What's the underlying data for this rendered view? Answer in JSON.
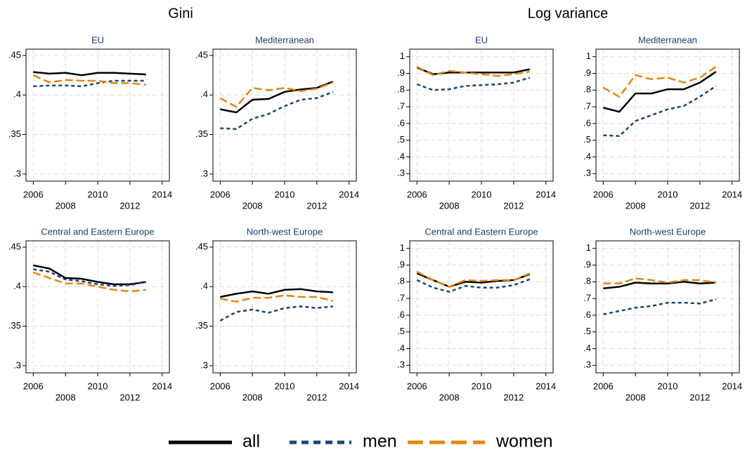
{
  "group_titles": [
    "Gini",
    "Log variance"
  ],
  "chart_data": [
    {
      "type": "line",
      "title": "EU",
      "x": [
        2006,
        2007,
        2008,
        2009,
        2010,
        2011,
        2012,
        2013
      ],
      "series": [
        {
          "name": "all",
          "color": "#000000",
          "linestyle": "solid",
          "values": [
            0.429,
            0.427,
            0.428,
            0.425,
            0.428,
            0.428,
            0.427,
            0.426
          ]
        },
        {
          "name": "men",
          "color": "#1a476f",
          "linestyle": "short",
          "values": [
            0.411,
            0.412,
            0.412,
            0.411,
            0.415,
            0.418,
            0.418,
            0.418
          ]
        },
        {
          "name": "women",
          "color": "#e8850a",
          "linestyle": "long",
          "values": [
            0.425,
            0.416,
            0.419,
            0.418,
            0.418,
            0.415,
            0.415,
            0.413
          ]
        }
      ],
      "xlim": [
        2005.55,
        2014.45
      ],
      "ylim": [
        0.291,
        0.458
      ],
      "xticks": [
        2006,
        2008,
        2010,
        2012,
        2014
      ],
      "yticks": [
        {
          "value": 0.3,
          "label": ".3"
        },
        {
          "value": 0.35,
          "label": ".35"
        },
        {
          "value": 0.4,
          "label": ".4"
        },
        {
          "value": 0.45,
          "label": ".45"
        }
      ],
      "grid": true
    },
    {
      "type": "line",
      "title": "Mediterranean",
      "x": [
        2006,
        2007,
        2008,
        2009,
        2010,
        2011,
        2012,
        2013
      ],
      "series": [
        {
          "name": "all",
          "color": "#000000",
          "linestyle": "solid",
          "values": [
            0.382,
            0.378,
            0.394,
            0.395,
            0.404,
            0.407,
            0.409,
            0.417
          ]
        },
        {
          "name": "men",
          "color": "#1a476f",
          "linestyle": "short",
          "values": [
            0.358,
            0.357,
            0.37,
            0.376,
            0.386,
            0.394,
            0.396,
            0.404
          ]
        },
        {
          "name": "women",
          "color": "#e8850a",
          "linestyle": "long",
          "values": [
            0.396,
            0.385,
            0.409,
            0.406,
            0.409,
            0.405,
            0.408,
            0.416
          ]
        }
      ],
      "xlim": [
        2005.55,
        2014.45
      ],
      "ylim": [
        0.291,
        0.458
      ],
      "xticks": [
        2006,
        2008,
        2010,
        2012,
        2014
      ],
      "yticks": [
        {
          "value": 0.3,
          "label": ".3"
        },
        {
          "value": 0.35,
          "label": ".35"
        },
        {
          "value": 0.4,
          "label": ".4"
        },
        {
          "value": 0.45,
          "label": ".45"
        }
      ],
      "grid": true
    },
    {
      "type": "line",
      "title": "Central and Eastern Europe",
      "x": [
        2006,
        2007,
        2008,
        2009,
        2010,
        2011,
        2012,
        2013
      ],
      "series": [
        {
          "name": "all",
          "color": "#000000",
          "linestyle": "solid",
          "values": [
            0.427,
            0.423,
            0.411,
            0.41,
            0.406,
            0.403,
            0.403,
            0.406
          ]
        },
        {
          "name": "men",
          "color": "#1a476f",
          "linestyle": "short",
          "values": [
            0.422,
            0.419,
            0.409,
            0.407,
            0.403,
            0.401,
            0.402,
            0.406
          ]
        },
        {
          "name": "women",
          "color": "#e8850a",
          "linestyle": "long",
          "values": [
            0.418,
            0.411,
            0.404,
            0.404,
            0.4,
            0.396,
            0.394,
            0.396
          ]
        }
      ],
      "xlim": [
        2005.55,
        2014.45
      ],
      "ylim": [
        0.291,
        0.458
      ],
      "xticks": [
        2006,
        2008,
        2010,
        2012,
        2014
      ],
      "yticks": [
        {
          "value": 0.3,
          "label": ".3"
        },
        {
          "value": 0.35,
          "label": ".35"
        },
        {
          "value": 0.4,
          "label": ".4"
        },
        {
          "value": 0.45,
          "label": ".45"
        }
      ],
      "grid": true
    },
    {
      "type": "line",
      "title": "North-west Europe",
      "x": [
        2006,
        2007,
        2008,
        2009,
        2010,
        2011,
        2012,
        2013
      ],
      "series": [
        {
          "name": "all",
          "color": "#000000",
          "linestyle": "solid",
          "values": [
            0.387,
            0.391,
            0.394,
            0.391,
            0.396,
            0.397,
            0.394,
            0.393
          ]
        },
        {
          "name": "men",
          "color": "#1a476f",
          "linestyle": "short",
          "values": [
            0.357,
            0.368,
            0.371,
            0.367,
            0.373,
            0.375,
            0.373,
            0.375
          ]
        },
        {
          "name": "women",
          "color": "#e8850a",
          "linestyle": "long",
          "values": [
            0.385,
            0.381,
            0.386,
            0.386,
            0.389,
            0.387,
            0.387,
            0.382
          ]
        }
      ],
      "xlim": [
        2005.55,
        2014.45
      ],
      "ylim": [
        0.291,
        0.458
      ],
      "xticks": [
        2006,
        2008,
        2010,
        2012,
        2014
      ],
      "yticks": [
        {
          "value": 0.3,
          "label": ".3"
        },
        {
          "value": 0.35,
          "label": ".35"
        },
        {
          "value": 0.4,
          "label": ".4"
        },
        {
          "value": 0.45,
          "label": ".45"
        }
      ],
      "grid": true
    },
    {
      "type": "line",
      "title": "EU",
      "x": [
        2006,
        2007,
        2008,
        2009,
        2010,
        2011,
        2012,
        2013
      ],
      "series": [
        {
          "name": "all",
          "color": "#000000",
          "linestyle": "solid",
          "values": [
            0.935,
            0.895,
            0.905,
            0.905,
            0.905,
            0.905,
            0.905,
            0.925
          ]
        },
        {
          "name": "men",
          "color": "#1a476f",
          "linestyle": "short",
          "values": [
            0.835,
            0.8,
            0.805,
            0.825,
            0.83,
            0.835,
            0.845,
            0.875
          ]
        },
        {
          "name": "women",
          "color": "#e8850a",
          "linestyle": "long",
          "values": [
            0.94,
            0.89,
            0.915,
            0.905,
            0.895,
            0.885,
            0.895,
            0.91
          ]
        }
      ],
      "xlim": [
        2005.55,
        2014.45
      ],
      "ylim": [
        0.255,
        1.045
      ],
      "xticks": [
        2006,
        2008,
        2010,
        2012,
        2014
      ],
      "yticks": [
        {
          "value": 0.3,
          "label": ".3"
        },
        {
          "value": 0.4,
          "label": ".4"
        },
        {
          "value": 0.5,
          "label": ".5"
        },
        {
          "value": 0.6,
          "label": ".6"
        },
        {
          "value": 0.7,
          "label": ".7"
        },
        {
          "value": 0.8,
          "label": ".8"
        },
        {
          "value": 0.9,
          "label": ".9"
        },
        1
      ],
      "grid": true
    },
    {
      "type": "line",
      "title": "Mediterranean",
      "x": [
        2006,
        2007,
        2008,
        2009,
        2010,
        2011,
        2012,
        2013
      ],
      "series": [
        {
          "name": "all",
          "color": "#000000",
          "linestyle": "solid",
          "values": [
            0.695,
            0.67,
            0.78,
            0.78,
            0.805,
            0.805,
            0.845,
            0.91
          ]
        },
        {
          "name": "men",
          "color": "#1a476f",
          "linestyle": "short",
          "values": [
            0.53,
            0.525,
            0.615,
            0.65,
            0.685,
            0.705,
            0.76,
            0.825
          ]
        },
        {
          "name": "women",
          "color": "#e8850a",
          "linestyle": "long",
          "values": [
            0.815,
            0.76,
            0.89,
            0.865,
            0.875,
            0.845,
            0.875,
            0.94
          ]
        }
      ],
      "xlim": [
        2005.55,
        2014.45
      ],
      "ylim": [
        0.255,
        1.045
      ],
      "xticks": [
        2006,
        2008,
        2010,
        2012,
        2014
      ],
      "yticks": [
        {
          "value": 0.3,
          "label": ".3"
        },
        {
          "value": 0.4,
          "label": ".4"
        },
        {
          "value": 0.5,
          "label": ".5"
        },
        {
          "value": 0.6,
          "label": ".6"
        },
        {
          "value": 0.7,
          "label": ".7"
        },
        {
          "value": 0.8,
          "label": ".8"
        },
        {
          "value": 0.9,
          "label": ".9"
        },
        1
      ],
      "grid": true
    },
    {
      "type": "line",
      "title": "Central and Eastern Europe",
      "x": [
        2006,
        2007,
        2008,
        2009,
        2010,
        2011,
        2012,
        2013
      ],
      "series": [
        {
          "name": "all",
          "color": "#000000",
          "linestyle": "solid",
          "values": [
            0.85,
            0.81,
            0.77,
            0.8,
            0.795,
            0.805,
            0.81,
            0.845
          ]
        },
        {
          "name": "men",
          "color": "#1a476f",
          "linestyle": "short",
          "values": [
            0.81,
            0.765,
            0.74,
            0.775,
            0.765,
            0.765,
            0.78,
            0.815
          ]
        },
        {
          "name": "women",
          "color": "#e8850a",
          "linestyle": "long",
          "values": [
            0.86,
            0.81,
            0.77,
            0.81,
            0.805,
            0.81,
            0.81,
            0.85
          ]
        }
      ],
      "xlim": [
        2005.55,
        2014.45
      ],
      "ylim": [
        0.255,
        1.045
      ],
      "xticks": [
        2006,
        2008,
        2010,
        2012,
        2014
      ],
      "yticks": [
        {
          "value": 0.3,
          "label": ".3"
        },
        {
          "value": 0.4,
          "label": ".4"
        },
        {
          "value": 0.5,
          "label": ".5"
        },
        {
          "value": 0.6,
          "label": ".6"
        },
        {
          "value": 0.7,
          "label": ".7"
        },
        {
          "value": 0.8,
          "label": ".8"
        },
        {
          "value": 0.9,
          "label": ".9"
        },
        1
      ],
      "grid": true
    },
    {
      "type": "line",
      "title": "North-west Europe",
      "x": [
        2006,
        2007,
        2008,
        2009,
        2010,
        2011,
        2012,
        2013
      ],
      "series": [
        {
          "name": "all",
          "color": "#000000",
          "linestyle": "solid",
          "values": [
            0.76,
            0.77,
            0.795,
            0.79,
            0.79,
            0.8,
            0.79,
            0.795
          ]
        },
        {
          "name": "men",
          "color": "#1a476f",
          "linestyle": "short",
          "values": [
            0.605,
            0.625,
            0.645,
            0.655,
            0.675,
            0.675,
            0.67,
            0.695
          ]
        },
        {
          "name": "women",
          "color": "#e8850a",
          "linestyle": "long",
          "values": [
            0.79,
            0.79,
            0.82,
            0.81,
            0.795,
            0.81,
            0.81,
            0.795
          ]
        }
      ],
      "xlim": [
        2005.55,
        2014.45
      ],
      "ylim": [
        0.255,
        1.045
      ],
      "xticks": [
        2006,
        2008,
        2010,
        2012,
        2014
      ],
      "yticks": [
        {
          "value": 0.3,
          "label": ".3"
        },
        {
          "value": 0.4,
          "label": ".4"
        },
        {
          "value": 0.5,
          "label": ".5"
        },
        {
          "value": 0.6,
          "label": ".6"
        },
        {
          "value": 0.7,
          "label": ".7"
        },
        {
          "value": 0.8,
          "label": ".8"
        },
        {
          "value": 0.9,
          "label": ".9"
        },
        1
      ],
      "grid": true
    }
  ]
}
